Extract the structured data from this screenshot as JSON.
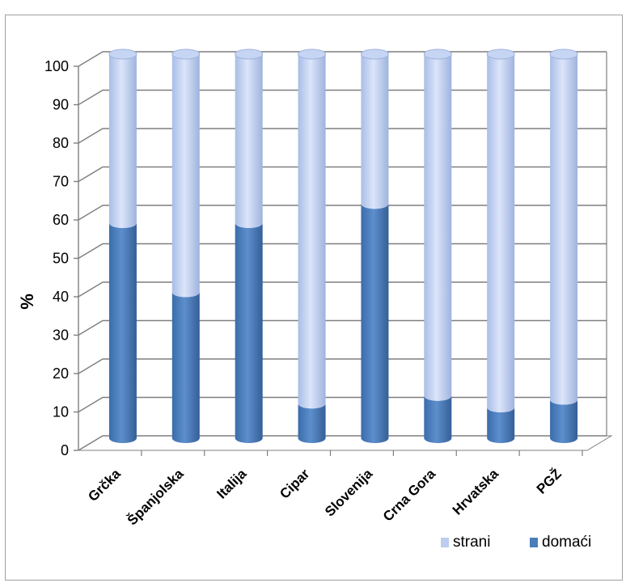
{
  "chart_data": {
    "type": "bar",
    "stacked": true,
    "percent": true,
    "three_d": true,
    "title": "",
    "xlabel": "",
    "ylabel": "%",
    "ylim": [
      0,
      100
    ],
    "yticks": [
      0,
      10,
      20,
      30,
      40,
      50,
      60,
      70,
      80,
      90,
      100
    ],
    "grid": true,
    "legend_position": "bottom-right",
    "categories": [
      "Grčka",
      "Španjolska",
      "Italija",
      "Cipar",
      "Slovenija",
      "Crna Gora",
      "Hrvatska",
      "PGŽ"
    ],
    "series": [
      {
        "name": "domaći",
        "color": "#4a7ebb",
        "values": [
          56,
          38,
          56,
          9,
          61,
          11,
          8,
          10
        ]
      },
      {
        "name": "strani",
        "color": "#bccdf0",
        "values": [
          44,
          62,
          44,
          91,
          39,
          89,
          92,
          90
        ]
      }
    ],
    "legend": [
      {
        "name": "strani",
        "color": "#bccdf0"
      },
      {
        "name": "domaći",
        "color": "#4a7ebb"
      }
    ]
  }
}
